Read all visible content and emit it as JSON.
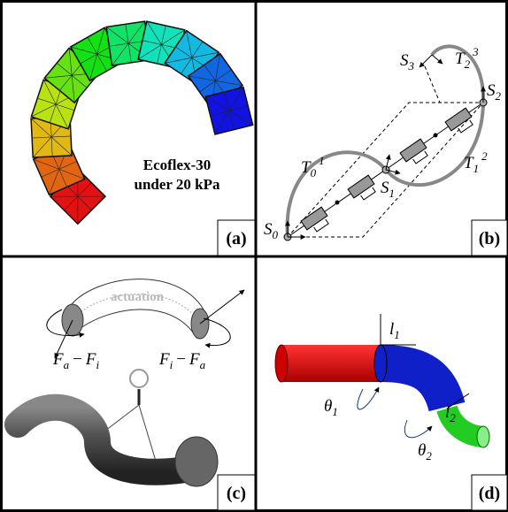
{
  "panels": [
    {
      "label": "(a)",
      "caption": [
        "Ecoflex-30",
        "under 20 kPa"
      ]
    },
    {
      "label": "(b)",
      "symbols": {
        "S0": {
          "base": "S",
          "sub": "0"
        },
        "S1": {
          "base": "S",
          "sub": "1"
        },
        "S2": {
          "base": "S",
          "sub": "2"
        },
        "S3": {
          "base": "S",
          "sub": "3"
        },
        "T01": {
          "base": "T",
          "sub": "0",
          "sup": "1"
        },
        "T12": {
          "base": "T",
          "sub": "1",
          "sup": "2"
        },
        "T23": {
          "base": "T",
          "sub": "2",
          "sup": "3"
        }
      }
    },
    {
      "label": "(c)",
      "note": "actuation",
      "left": {
        "a": "F",
        "a_sub": "a",
        "op": "−",
        "b": "F",
        "b_sub": "i"
      },
      "right": {
        "a": "F",
        "a_sub": "i",
        "op": "−",
        "b": "F",
        "b_sub": "a"
      }
    },
    {
      "label": "(d)",
      "symbols": {
        "l1": {
          "base": "l",
          "sub": "1"
        },
        "l2": {
          "base": "l",
          "sub": "2"
        },
        "th1": {
          "base": "θ",
          "sub": "1"
        },
        "th2": {
          "base": "θ",
          "sub": "2"
        }
      }
    }
  ]
}
